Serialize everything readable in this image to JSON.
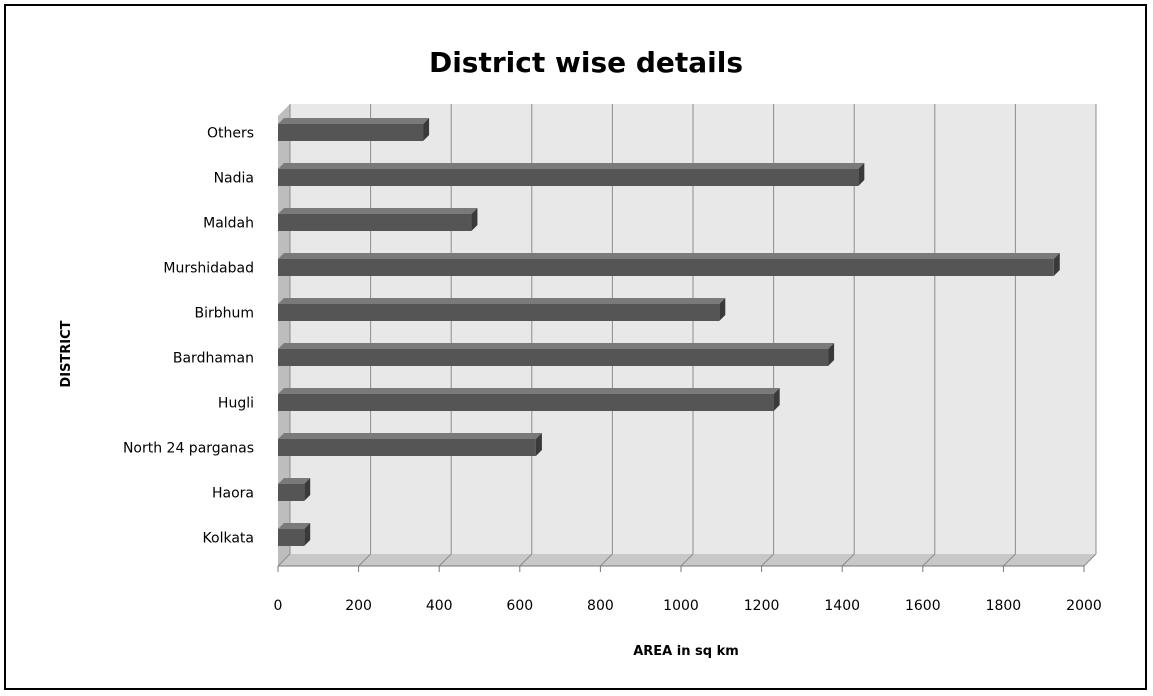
{
  "chart_data": {
    "type": "bar",
    "orientation": "horizontal",
    "title": "District wise details",
    "xlabel": "AREA in sq km",
    "ylabel": "DISTRICT",
    "categories": [
      "Kolkata",
      "Haora",
      "North 24 parganas",
      "Hugli",
      "Bardhaman",
      "Birbhum",
      "Murshidabad",
      "Maldah",
      "Nadia",
      "Others"
    ],
    "values": [
      65,
      65,
      640,
      1230,
      1365,
      1095,
      1925,
      480,
      1440,
      360
    ],
    "xlim": [
      0,
      2000
    ],
    "xticks": [
      0,
      200,
      400,
      600,
      800,
      1000,
      1200,
      1400,
      1600,
      1800,
      2000
    ],
    "grid": true,
    "legend": "none",
    "style": "3d",
    "colors": {
      "bar": "#555555",
      "bar_top": "#7a7a7a",
      "bar_side": "#3a3a3a",
      "plot_wall": "#e8e8e8",
      "plot_floor": "#c8c8c8",
      "gridline": "#8c8c8c"
    }
  }
}
